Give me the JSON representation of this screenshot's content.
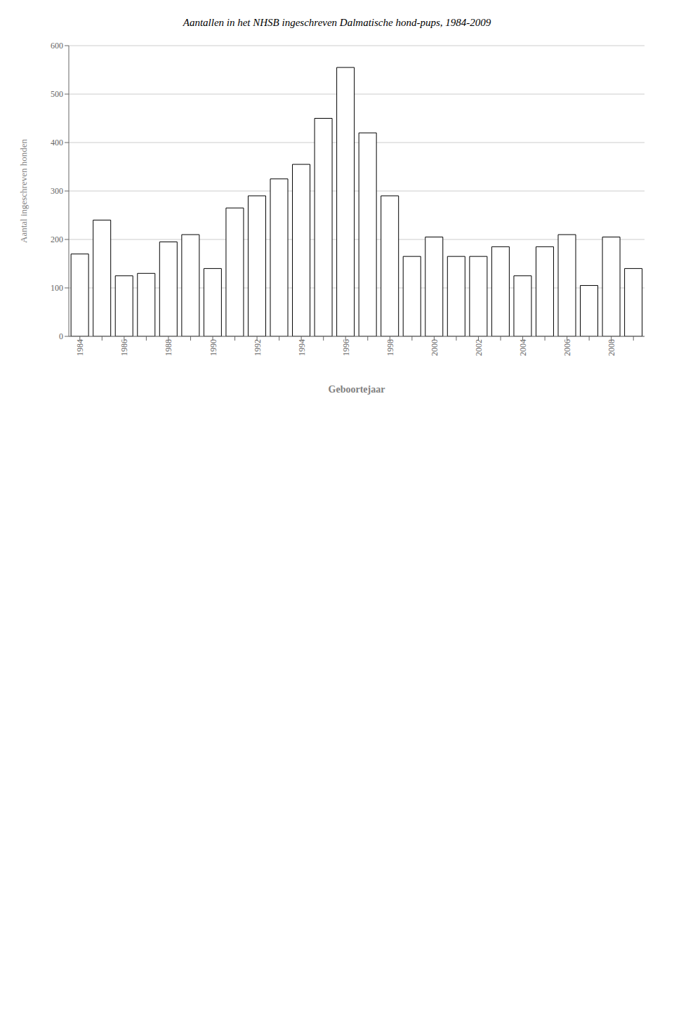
{
  "chart_data": {
    "type": "bar",
    "title": "Aantallen in het NHSB ingeschreven Dalmatische hond-pups, 1984-2009",
    "xlabel": "Geboortejaar",
    "ylabel": "Aantal ingeschreven honden",
    "categories": [
      "1984",
      null,
      "1986",
      null,
      "1988",
      null,
      "1990",
      null,
      "1992",
      null,
      "1994",
      null,
      "1996",
      null,
      "1998",
      null,
      "2000",
      null,
      "2002",
      null,
      "2004",
      null,
      "2006",
      null,
      "2008",
      null
    ],
    "values": [
      170,
      240,
      125,
      130,
      195,
      210,
      140,
      265,
      290,
      325,
      355,
      450,
      555,
      420,
      290,
      165,
      205,
      165,
      165,
      185,
      125,
      185,
      210,
      105,
      205,
      140
    ],
    "color": "white",
    "ylim": [
      0,
      600
    ],
    "yticks": [
      0,
      100,
      200,
      300,
      400,
      500,
      600
    ],
    "grid": true
  }
}
